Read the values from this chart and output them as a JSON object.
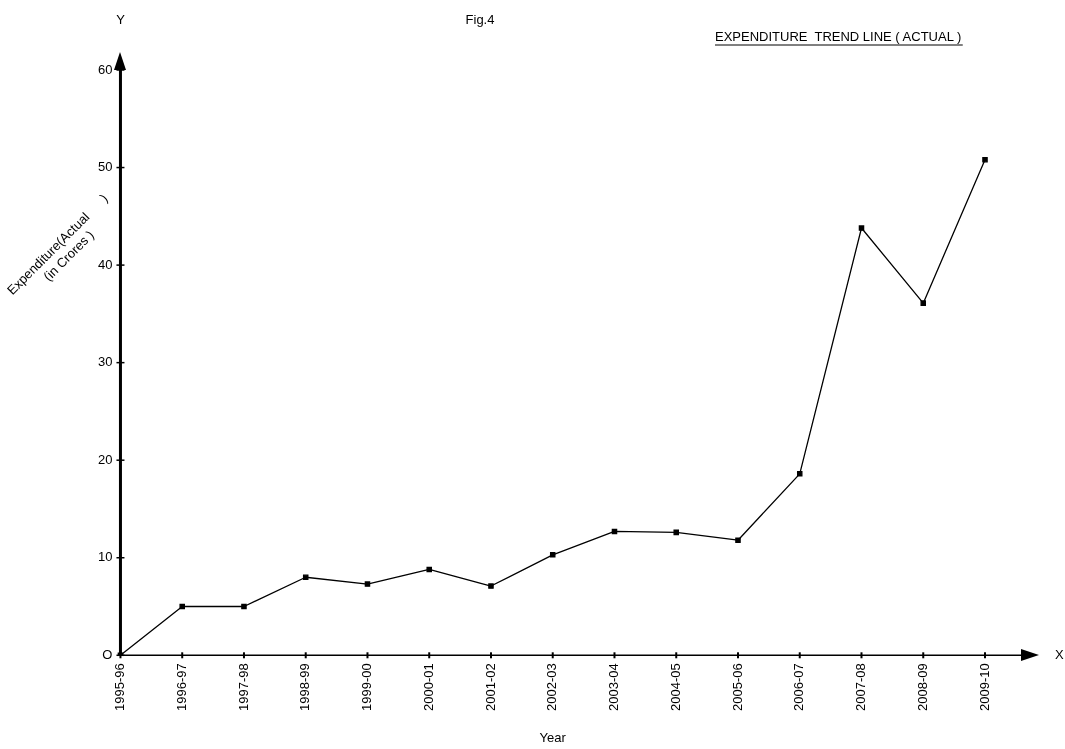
{
  "chart_data": {
    "type": "line",
    "title": "EXPENDITURE  TREND LINE ( ACTUAL )",
    "xlabel": "Year",
    "ylabel": "Expenditure(Actual      )\n(in Crores )",
    "annotations": [
      "Fig.4",
      "Y",
      "X"
    ],
    "categories": [
      "1995-96",
      "1996-97",
      "1997-98",
      "1998-99",
      "1999-00",
      "2000-01",
      "2001-02",
      "2002-03",
      "2003-04",
      "2004-05",
      "2005-06",
      "2006-07",
      "2007-08",
      "2008-09",
      "2009-10"
    ],
    "series": [
      {
        "color": "#000000",
        "values": [
          0,
          5,
          5,
          8,
          7.3,
          8.8,
          7.1,
          10.3,
          12.7,
          12.6,
          11.8,
          18.6,
          43.8,
          36.1,
          50.8
        ]
      }
    ],
    "ylim": [
      0,
      60
    ],
    "yticks": [
      {
        "value": 0,
        "label": "O"
      },
      10,
      20,
      30,
      40,
      50,
      60
    ],
    "grid": false,
    "legend": false,
    "marker": "square",
    "line_style": "solid"
  }
}
